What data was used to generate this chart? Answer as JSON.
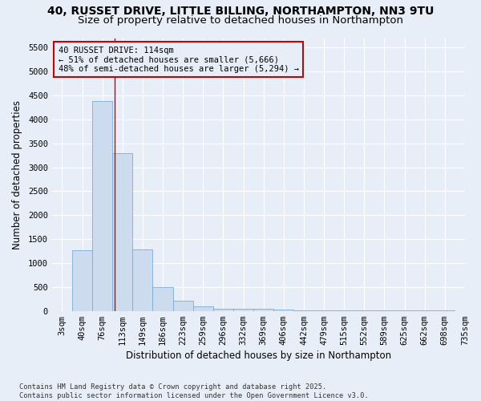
{
  "title_line1": "40, RUSSET DRIVE, LITTLE BILLING, NORTHAMPTON, NN3 9TU",
  "title_line2": "Size of property relative to detached houses in Northampton",
  "xlabel": "Distribution of detached houses by size in Northampton",
  "ylabel": "Number of detached properties",
  "bar_values": [
    0,
    1270,
    4380,
    3300,
    1280,
    500,
    215,
    90,
    50,
    45,
    40,
    35,
    10,
    5,
    5,
    5,
    5,
    5,
    5,
    5
  ],
  "bin_labels": [
    "3sqm",
    "40sqm",
    "76sqm",
    "113sqm",
    "149sqm",
    "186sqm",
    "223sqm",
    "259sqm",
    "296sqm",
    "332sqm",
    "369sqm",
    "406sqm",
    "442sqm",
    "479sqm",
    "515sqm",
    "552sqm",
    "589sqm",
    "625sqm",
    "662sqm",
    "698sqm",
    "735sqm"
  ],
  "bar_color": "#ccdcee",
  "bar_edge_color": "#7badd4",
  "bg_color": "#e8eef8",
  "grid_color": "#ffffff",
  "vline_x_index": 2.62,
  "vline_color": "#cc0000",
  "annotation_text": "40 RUSSET DRIVE: 114sqm\n← 51% of detached houses are smaller (5,666)\n48% of semi-detached houses are larger (5,294) →",
  "annotation_box_color": "#cc0000",
  "ylim": [
    0,
    5700
  ],
  "yticks": [
    0,
    500,
    1000,
    1500,
    2000,
    2500,
    3000,
    3500,
    4000,
    4500,
    5000,
    5500
  ],
  "footnote": "Contains HM Land Registry data © Crown copyright and database right 2025.\nContains public sector information licensed under the Open Government Licence v3.0.",
  "title_fontsize": 10,
  "subtitle_fontsize": 9.5,
  "annot_fontsize": 7.5,
  "xlabel_fontsize": 8.5,
  "ylabel_fontsize": 8.5,
  "tick_fontsize": 7.5
}
